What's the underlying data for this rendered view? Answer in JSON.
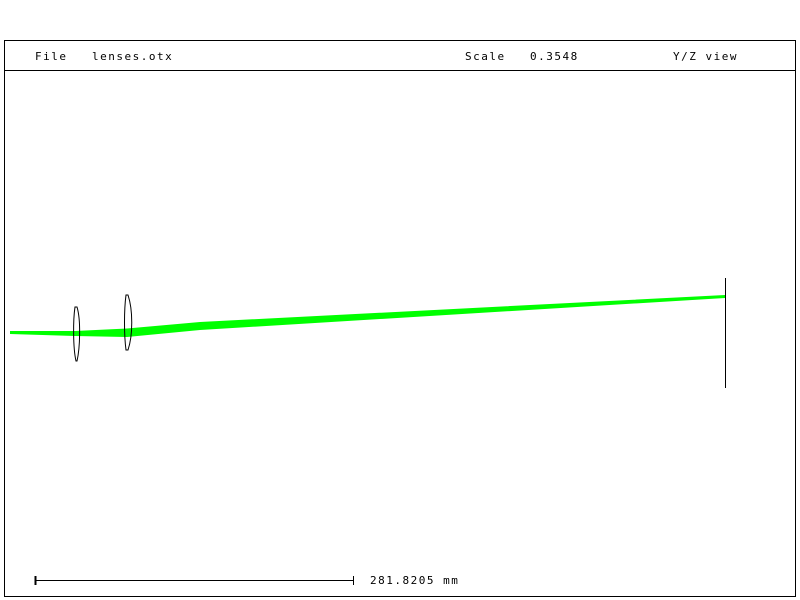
{
  "header": {
    "file_label": "File",
    "file_name": "lenses.otx",
    "scale_label": "Scale",
    "scale_value": "0.3548",
    "view_name": "Y/Z view"
  },
  "scale_bar": {
    "length_text": "281.8205 mm"
  },
  "colors": {
    "ray": "#00ff00",
    "lens": "#000000",
    "frame": "#000000"
  },
  "elements": [
    "lens-1",
    "lens-2",
    "image-plane"
  ]
}
